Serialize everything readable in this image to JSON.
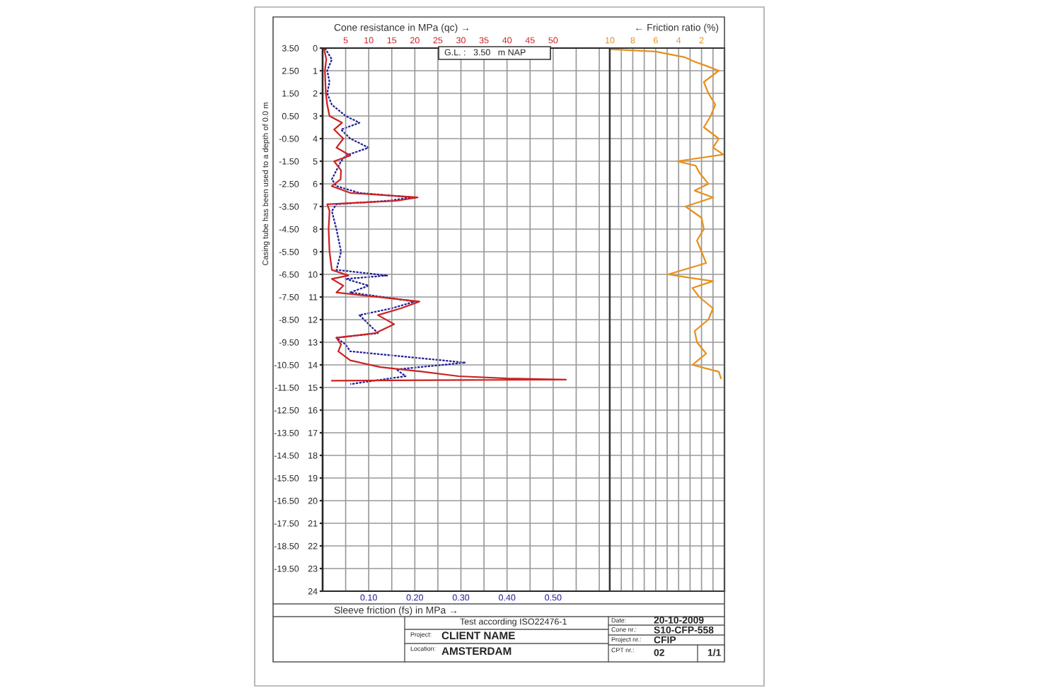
{
  "chart_data": [
    {
      "type": "line",
      "orientation": "horizontal",
      "xlabel": "Sleeve friction (fs) in MPa →",
      "x2label": "Cone resistance in MPa (qc) →",
      "xlim": [
        0,
        0.623
      ],
      "xticks": [
        {
          "value": 0.1,
          "label": "0.10"
        },
        {
          "value": 0.2,
          "label": "0.20"
        },
        {
          "value": 0.3,
          "label": "0.30"
        },
        {
          "value": 0.4,
          "label": "0.40"
        },
        {
          "value": 0.5,
          "label": "0.50"
        }
      ],
      "x2lim": [
        0,
        62.3
      ],
      "x2ticks": [
        5,
        10,
        15,
        20,
        25,
        30,
        35,
        40,
        45,
        50,
        {
          "value": 55,
          "label": null
        },
        {
          "value": 60,
          "label": null
        }
      ],
      "ylim": [
        24,
        0
      ],
      "yticks": [
        0,
        1,
        2,
        3,
        4,
        5,
        6,
        7,
        8,
        9,
        10,
        11,
        12,
        13,
        14,
        15,
        16,
        17,
        18,
        19,
        20,
        21,
        22,
        23,
        24
      ],
      "y2lim": [
        -20.5,
        3.5
      ],
      "y2ticks": [
        {
          "value": 3.5,
          "label": "3.50"
        },
        {
          "value": 2.5,
          "label": "2.50"
        },
        {
          "value": 1.5,
          "label": "1.50"
        },
        {
          "value": 0.5,
          "label": "0.50"
        },
        {
          "value": -0.5,
          "label": "-0.50"
        },
        {
          "value": -1.5,
          "label": "-1.50"
        },
        {
          "value": -2.5,
          "label": "-2.50"
        },
        {
          "value": -3.5,
          "label": "-3.50"
        },
        {
          "value": -4.5,
          "label": "-4.50"
        },
        {
          "value": -5.5,
          "label": "-5.50"
        },
        {
          "value": -6.5,
          "label": "-6.50"
        },
        {
          "value": -7.5,
          "label": "-7.50"
        },
        {
          "value": -8.5,
          "label": "-8.50"
        },
        {
          "value": -9.5,
          "label": "-9.50"
        },
        {
          "value": -10.5,
          "label": "-10.50"
        },
        {
          "value": -11.5,
          "label": "-11.50"
        },
        {
          "value": -12.5,
          "label": "-12.50"
        },
        {
          "value": -13.5,
          "label": "-13.50"
        },
        {
          "value": -14.5,
          "label": "-14.50"
        },
        {
          "value": -15.5,
          "label": "-15.50"
        },
        {
          "value": -16.5,
          "label": "-16.50"
        },
        {
          "value": -17.5,
          "label": "-17.50"
        },
        {
          "value": -18.5,
          "label": "-18.50"
        },
        {
          "value": -19.5,
          "label": "-19.50"
        }
      ],
      "grid": true,
      "marker": "none",
      "series": [
        {
          "axis": "x2",
          "color": "#cc2222",
          "line_style": "solid",
          "x": [
            0,
            0.5,
            1,
            1.5,
            2,
            2.5,
            3,
            3.3,
            3.6,
            4,
            4.4,
            4.75,
            5,
            5.4,
            5.8,
            6.1,
            6.4,
            6.6,
            6.75,
            6.9,
            7.2,
            8,
            9,
            9.8,
            10.05,
            10.2,
            10.5,
            10.8,
            11.2,
            11.5,
            11.8,
            12.2,
            12.6,
            12.8,
            13.1,
            13.4,
            13.8,
            14.1,
            14.3,
            14.5,
            14.6,
            14.65,
            14.7
          ],
          "values": [
            0.3,
            0.8,
            0.5,
            0.6,
            0.7,
            1.0,
            1.5,
            4.2,
            2.5,
            4.5,
            3.0,
            6.0,
            2.5,
            4.0,
            3.9,
            2.0,
            6.0,
            20.6,
            16.0,
            1.0,
            1.5,
            1.3,
            1.5,
            2.0,
            5.6,
            2.0,
            4.5,
            3.0,
            21.0,
            17.0,
            12.0,
            15.5,
            11.4,
            3.0,
            4.0,
            3.4,
            6.0,
            12.5,
            21.7,
            29.5,
            40.0,
            52.8,
            2.0
          ]
        },
        {
          "color": "#1f1f99",
          "line_style": "dashed",
          "x": [
            0,
            0.5,
            1,
            1.5,
            2,
            2.5,
            3,
            3.3,
            3.6,
            4,
            4.4,
            4.75,
            5,
            5.4,
            5.8,
            6.1,
            6.4,
            6.6,
            6.75,
            6.9,
            7.2,
            8,
            9,
            9.8,
            10.05,
            10.2,
            10.5,
            10.8,
            11.2,
            11.5,
            11.8,
            12.2,
            12.6,
            12.8,
            13.1,
            13.4,
            13.9,
            14.2,
            14.5,
            14.85
          ],
          "values": [
            0.005,
            0.02,
            0.01,
            0.015,
            0.01,
            0.02,
            0.05,
            0.08,
            0.04,
            0.06,
            0.1,
            0.05,
            0.04,
            0.03,
            0.02,
            0.03,
            0.08,
            0.195,
            0.14,
            0.03,
            0.02,
            0.03,
            0.04,
            0.03,
            0.14,
            0.05,
            0.1,
            0.06,
            0.2,
            0.15,
            0.08,
            0.1,
            0.12,
            0.03,
            0.05,
            0.06,
            0.31,
            0.16,
            0.18,
            0.06
          ]
        }
      ],
      "annotations": [
        "G.L. :   3.50   m NAP",
        "Test according ISO22476-1",
        "Project:",
        "CLIENT NAME",
        "Location:",
        "AMSTERDAM",
        "Date:",
        "20-10-2009",
        "Cone nr.:",
        "S10-CFP-558",
        "Project nr.:",
        "CFIP",
        "CPT nr.:",
        "02",
        "1/1",
        "Casing tube has been used to a depth of 0.0 m"
      ]
    },
    {
      "type": "line",
      "orientation": "horizontal",
      "tick_labels": "x",
      "xlabel": "← Friction ratio (%)",
      "xlim": [
        10,
        0
      ],
      "xticks": [
        10,
        {
          "value": 9,
          "label": null
        },
        8,
        {
          "value": 7,
          "label": null
        },
        6,
        {
          "value": 5,
          "label": null
        },
        4,
        {
          "value": 3,
          "label": null
        },
        2,
        {
          "value": 1,
          "label": null
        }
      ],
      "ylim": [
        24,
        0
      ],
      "yticks": [
        0,
        1,
        2,
        3,
        4,
        5,
        6,
        7,
        8,
        9,
        10,
        11,
        12,
        13,
        14,
        15,
        16,
        17,
        18,
        19,
        20,
        21,
        22,
        23,
        24
      ],
      "grid": true,
      "marker": "none",
      "series": [
        {
          "color": "#e8901a",
          "line_style": "solid",
          "x": [
            0,
            0.05,
            0.15,
            0.26,
            0.4,
            0.6,
            0.8,
            1,
            1.5,
            2,
            2.5,
            3,
            3.5,
            4,
            4.4,
            4.7,
            5,
            5.2,
            5.5,
            6,
            6.3,
            6.6,
            7,
            7.5,
            8,
            8.5,
            9,
            9.5,
            10,
            10.15,
            10.3,
            10.6,
            11,
            11.5,
            12,
            12.5,
            13,
            13.5,
            14,
            14.3,
            14.6
          ],
          "values": [
            10.0,
            10.0,
            6.0,
            4.9,
            3.5,
            2.6,
            1.5,
            0.5,
            1.8,
            1.4,
            0.8,
            1.2,
            1.8,
            0.5,
            1.0,
            0.1,
            4.1,
            2.5,
            2.2,
            1.4,
            2.6,
            1.0,
            3.4,
            2.0,
            1.8,
            2.4,
            2.0,
            1.6,
            4.9,
            3.0,
            1.0,
            2.8,
            2.2,
            1.0,
            1.4,
            2.6,
            2.4,
            1.6,
            2.8,
            0.5,
            0.3
          ]
        }
      ]
    }
  ]
}
